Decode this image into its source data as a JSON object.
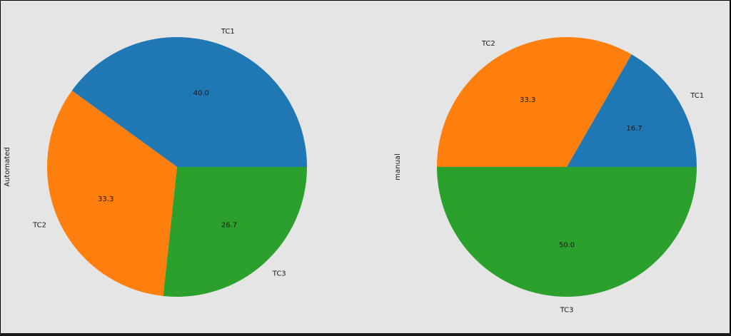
{
  "chart_data": [
    {
      "type": "pie",
      "ylabel": "Automated",
      "categories": [
        "TC1",
        "TC2",
        "TC3"
      ],
      "values": [
        40.0,
        33.3,
        26.7
      ],
      "autopct_labels": [
        "40.0",
        "33.3",
        "26.7"
      ],
      "colors": [
        "#1f77b4",
        "#ff7f0e",
        "#2ca02c"
      ],
      "start_angle_deg": 0,
      "direction": "counterclockwise"
    },
    {
      "type": "pie",
      "ylabel": "manual",
      "categories": [
        "TC1",
        "TC2",
        "TC3"
      ],
      "values": [
        16.7,
        33.3,
        50.0
      ],
      "autopct_labels": [
        "16.7",
        "33.3",
        "50.0"
      ],
      "colors": [
        "#1f77b4",
        "#ff7f0e",
        "#2ca02c"
      ],
      "start_angle_deg": 0,
      "direction": "counterclockwise"
    }
  ],
  "figure": {
    "background": "#e5e5e5"
  }
}
